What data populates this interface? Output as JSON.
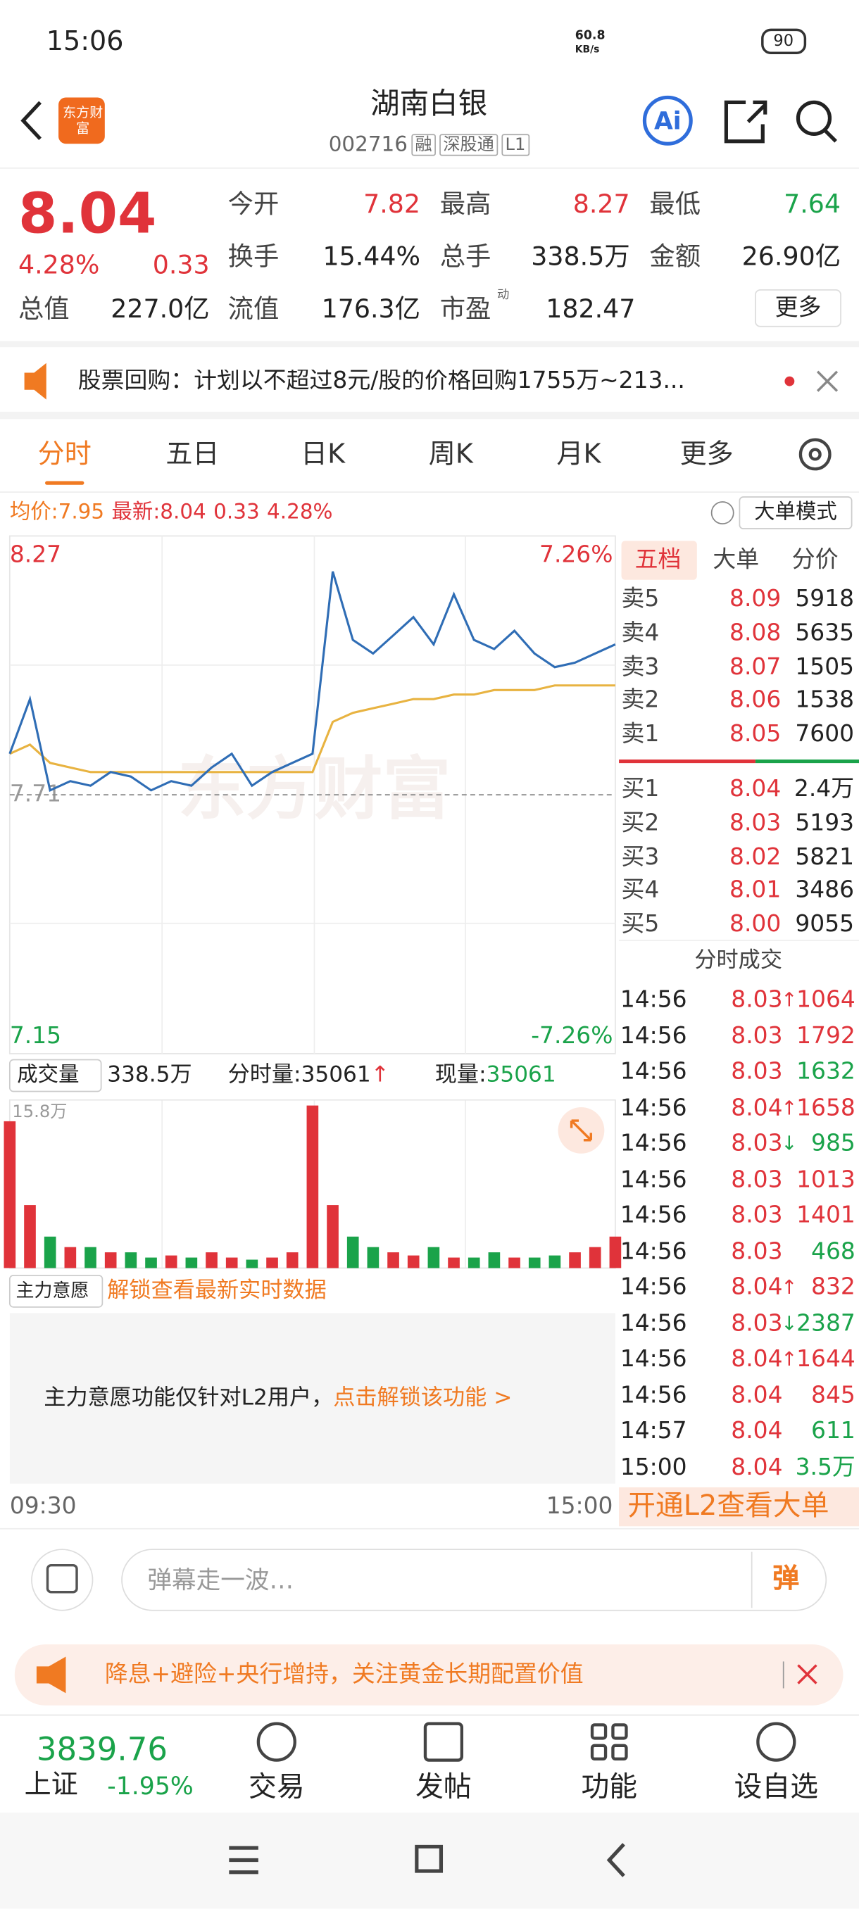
{
  "status_bar": {
    "time": "15:06",
    "net_speed": "60.8",
    "net_unit": "KB/s",
    "battery": "90"
  },
  "header": {
    "logo": "东方财富",
    "title": "湖南白银",
    "code": "002716",
    "tags": [
      "融",
      "深股通",
      "L1"
    ]
  },
  "quote": {
    "price": "8.04",
    "change_pct": "4.28%",
    "change": "0.33",
    "fields": [
      {
        "label": "今开",
        "value": "7.82"
      },
      {
        "label": "最高",
        "value": "8.27"
      },
      {
        "label": "最低",
        "value": "7.64"
      },
      {
        "label": "换手",
        "value": "15.44%"
      },
      {
        "label": "总手",
        "value": "338.5万"
      },
      {
        "label": "金额",
        "value": "26.90亿"
      },
      {
        "label": "总值",
        "value": "227.0亿"
      },
      {
        "label": "流值",
        "value": "176.3亿"
      },
      {
        "label": "市盈",
        "value": "182.47",
        "sup": "动"
      }
    ],
    "more": "更多"
  },
  "notice": "股票回购：计划以不超过8元/股的价格回购1755万~213...",
  "tabs": [
    "分时",
    "五日",
    "日K",
    "周K",
    "月K",
    "更多"
  ],
  "info_line": {
    "avg_label": "均价:",
    "avg": "7.95",
    "last_label": "最新:",
    "last": "8.04",
    "change": "0.33",
    "change_pct": "4.28%",
    "mode": "大单模式"
  },
  "chart_data": [
    {
      "type": "line",
      "watermark": "东方财富",
      "xlim": [
        0,
        240
      ],
      "ylim": [
        7.15,
        8.27
      ],
      "yticks": [
        8.27,
        7.71,
        7.15
      ],
      "pct_top": "7.26%",
      "pct_bottom": "-7.26%",
      "time_start": "09:30",
      "time_end": "15:00",
      "x": [
        0,
        8,
        16,
        24,
        32,
        40,
        48,
        56,
        64,
        72,
        80,
        88,
        96,
        104,
        112,
        120,
        128,
        136,
        144,
        152,
        160,
        168,
        176,
        184,
        192,
        200,
        208,
        216,
        224,
        232,
        240
      ],
      "series": [
        {
          "color": "#2f6db5",
          "values": [
            7.8,
            7.92,
            7.72,
            7.74,
            7.73,
            7.76,
            7.75,
            7.72,
            7.74,
            7.73,
            7.77,
            7.8,
            7.73,
            7.76,
            7.78,
            7.8,
            8.2,
            8.05,
            8.02,
            8.06,
            8.1,
            8.04,
            8.15,
            8.05,
            8.03,
            8.07,
            8.02,
            7.99,
            8.0,
            8.02,
            8.04
          ]
        },
        {
          "color": "#e8b341",
          "values": [
            7.8,
            7.82,
            7.78,
            7.77,
            7.76,
            7.76,
            7.76,
            7.76,
            7.76,
            7.76,
            7.76,
            7.76,
            7.76,
            7.76,
            7.76,
            7.76,
            7.87,
            7.89,
            7.9,
            7.91,
            7.92,
            7.92,
            7.93,
            7.93,
            7.94,
            7.94,
            7.94,
            7.95,
            7.95,
            7.95,
            7.95
          ]
        }
      ]
    },
    {
      "type": "bar",
      "xlim": [
        0,
        240
      ],
      "ylim": [
        0,
        15.8
      ],
      "yticks": [
        {
          "value": 15.8,
          "label": "15.8万"
        }
      ],
      "up_color": "#e0333a",
      "down_color": "#1aa34a",
      "x": [
        0,
        8,
        16,
        24,
        32,
        40,
        48,
        56,
        64,
        72,
        80,
        88,
        96,
        104,
        112,
        120,
        128,
        136,
        144,
        152,
        160,
        168,
        176,
        184,
        192,
        200,
        208,
        216,
        224,
        232,
        240
      ],
      "values": [
        14,
        6,
        3,
        2,
        2,
        1.5,
        1.5,
        1,
        1.2,
        1,
        1.5,
        1,
        0.8,
        1,
        1.5,
        15.5,
        6,
        3,
        2,
        1.5,
        1.2,
        2,
        1,
        1,
        1.5,
        1,
        1,
        1.2,
        1.5,
        2,
        3
      ]
    }
  ],
  "volume_header": {
    "label": "成交量",
    "total": "338.5万",
    "minute_label": "分时量:",
    "minute": "35061",
    "minute_arrow": "↑",
    "now_label": "现量:",
    "now": "35061"
  },
  "main_force": {
    "label": "主力意愿",
    "unlock": "解锁查看最新实时数据",
    "note": "主力意愿功能仅针对L2用户，",
    "link": "点击解锁该功能 >"
  },
  "order_book": {
    "tabs": [
      "五档",
      "大单",
      "分价"
    ],
    "sell": [
      {
        "label": "卖5",
        "price": "8.09",
        "volume": "5918"
      },
      {
        "label": "卖4",
        "price": "8.08",
        "volume": "5635"
      },
      {
        "label": "卖3",
        "price": "8.07",
        "volume": "1505"
      },
      {
        "label": "卖2",
        "price": "8.06",
        "volume": "1538"
      },
      {
        "label": "卖1",
        "price": "8.05",
        "volume": "7600"
      }
    ],
    "buy": [
      {
        "label": "买1",
        "price": "8.04",
        "volume": "2.4万"
      },
      {
        "label": "买2",
        "price": "8.03",
        "volume": "5193"
      },
      {
        "label": "买3",
        "price": "8.02",
        "volume": "5821"
      },
      {
        "label": "买4",
        "price": "8.01",
        "volume": "3486"
      },
      {
        "label": "买5",
        "price": "8.00",
        "volume": "9055"
      }
    ]
  },
  "trades": {
    "title": "分时成交",
    "rows": [
      {
        "time": "14:56",
        "price": "8.03",
        "arrow": "↑",
        "volume": "1064",
        "color": "#e0333a"
      },
      {
        "time": "14:56",
        "price": "8.03",
        "volume": "1792",
        "color": "#e0333a"
      },
      {
        "time": "14:56",
        "price": "8.03",
        "volume": "1632",
        "color": "#1aa34a"
      },
      {
        "time": "14:56",
        "price": "8.04",
        "arrow": "↑",
        "volume": "1658",
        "color": "#e0333a"
      },
      {
        "time": "14:56",
        "price": "8.03",
        "arrow": "↓",
        "volume": "985",
        "color": "#1aa34a"
      },
      {
        "time": "14:56",
        "price": "8.03",
        "volume": "1013",
        "color": "#e0333a"
      },
      {
        "time": "14:56",
        "price": "8.03",
        "volume": "1401",
        "color": "#e0333a"
      },
      {
        "time": "14:56",
        "price": "8.03",
        "volume": "468",
        "color": "#1aa34a"
      },
      {
        "time": "14:56",
        "price": "8.04",
        "arrow": "↑",
        "volume": "832",
        "color": "#e0333a"
      },
      {
        "time": "14:56",
        "price": "8.03",
        "arrow": "↓",
        "volume": "2387",
        "color": "#1aa34a"
      },
      {
        "time": "14:56",
        "price": "8.04",
        "arrow": "↑",
        "volume": "1644",
        "color": "#e0333a"
      },
      {
        "time": "14:56",
        "price": "8.04",
        "volume": "845",
        "color": "#e0333a"
      },
      {
        "time": "14:57",
        "price": "8.04",
        "volume": "611",
        "color": "#1aa34a"
      },
      {
        "time": "15:00",
        "price": "8.04",
        "volume": "3.5万",
        "color": "#1aa34a"
      }
    ],
    "upgrade": "开通L2查看大单"
  },
  "comment": {
    "placeholder": "弹幕走一波…",
    "button": "弹"
  },
  "banner": "降息+避险+央行增持，关注黄金长期配置价值",
  "bottom_bar": {
    "index_value": "3839.76",
    "index_name": "上证",
    "index_change": "-1.95%",
    "nav": [
      "交易",
      "发帖",
      "功能",
      "设自选"
    ]
  }
}
